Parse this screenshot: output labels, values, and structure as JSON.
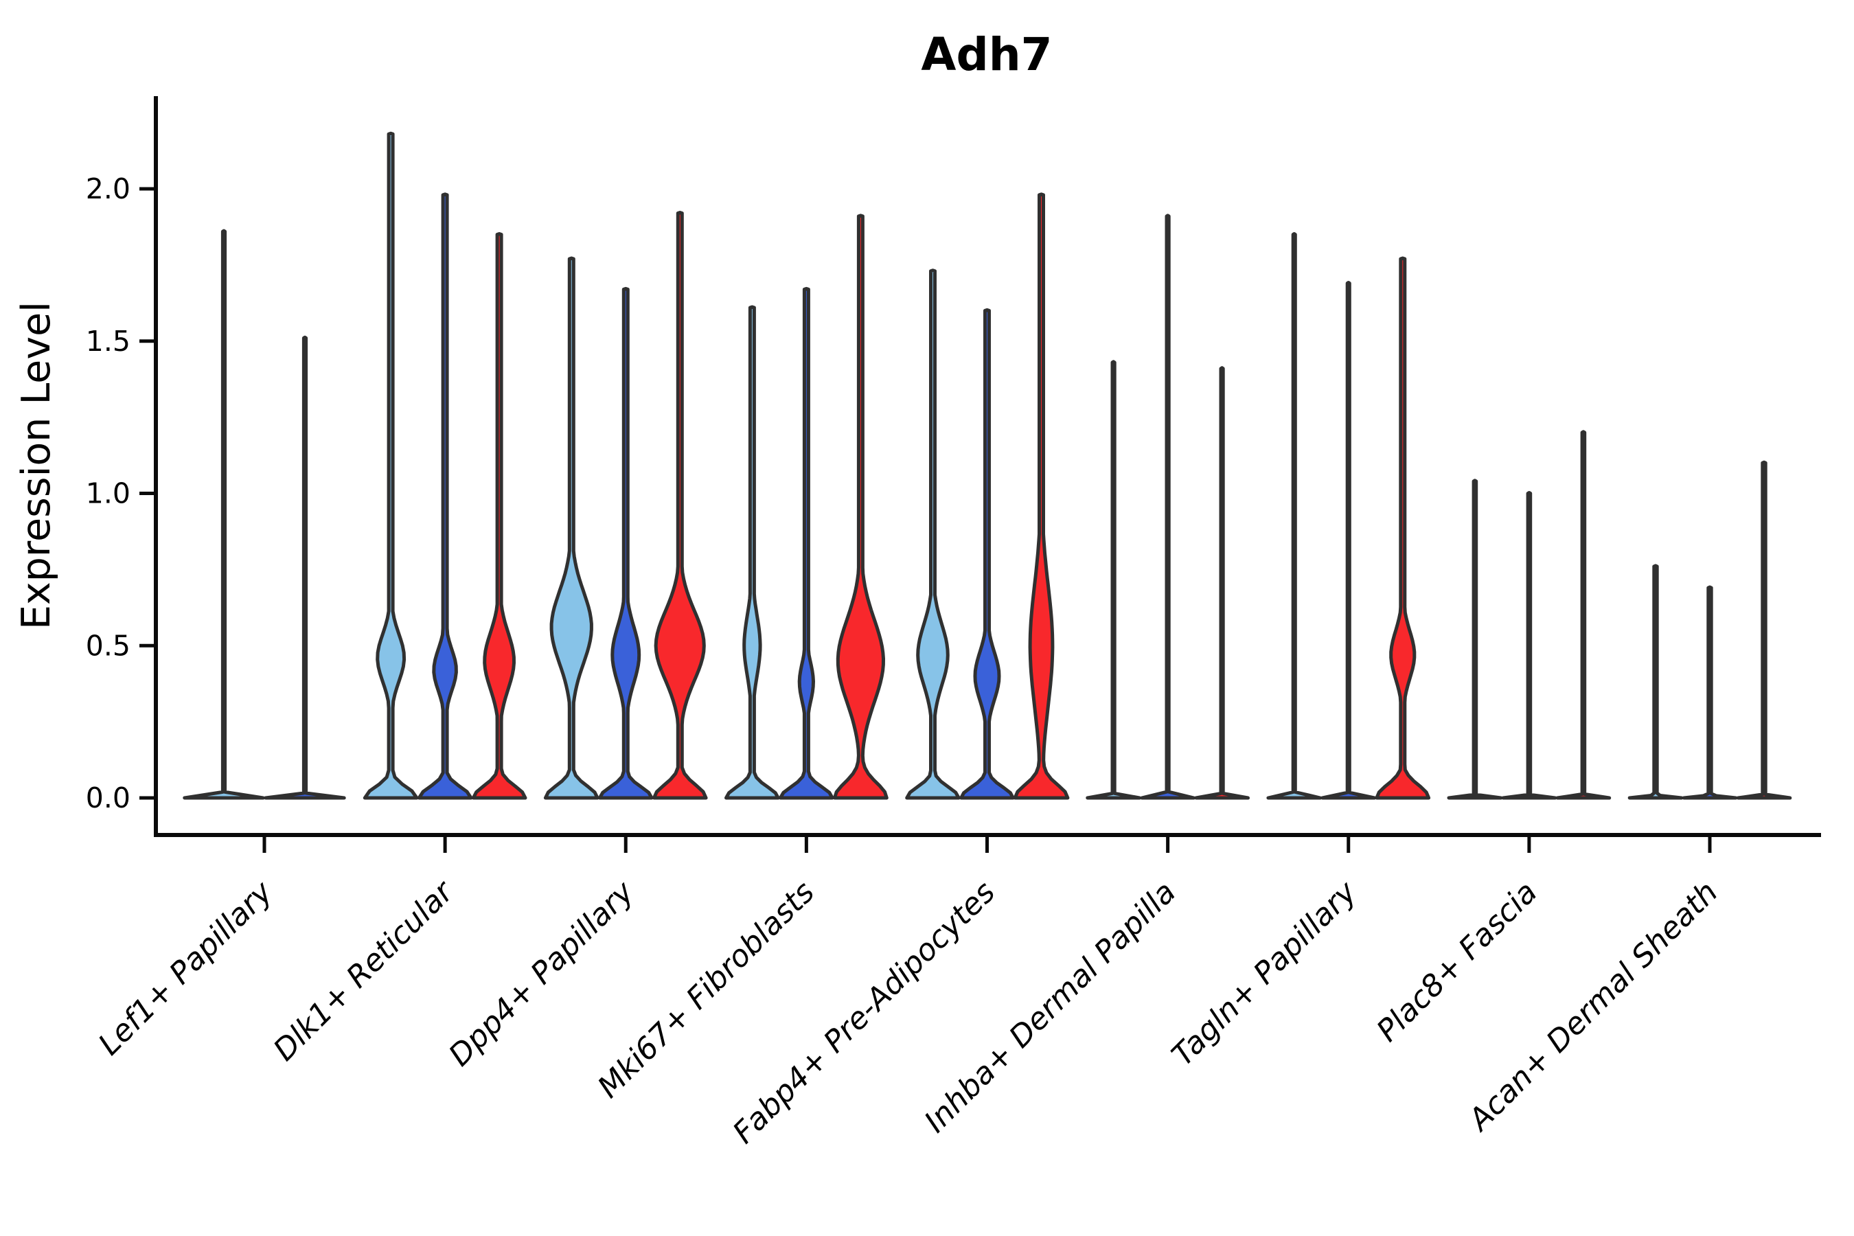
{
  "chart_data": {
    "type": "violin",
    "title": "Adh7",
    "xlabel": "",
    "ylabel": "Expression Level",
    "ylim": [
      0,
      2.3
    ],
    "yticks": [
      0.0,
      0.5,
      1.0,
      1.5,
      2.0
    ],
    "x_tick_rotation": 45,
    "grid": false,
    "legend": "none",
    "split_colors": [
      "#87C3E8",
      "#3A61D9",
      "#F8282C"
    ],
    "outline_color": "#303030",
    "spine_color": "#0a0a0a",
    "categories": [
      "Lef1+ Papillary",
      "Dlk1+ Reticular",
      "Dpp4+ Papillary",
      "Mki67+ Fibroblasts",
      "Fabp4+ Pre-Adipocytes",
      "Inhba+ Dermal Papilla",
      "Tagln+ Papillary",
      "Plac8+ Fascia",
      "Acan+ Dermal Sheath"
    ],
    "groups": [
      {
        "category": "Lef1+ Papillary",
        "violins": [
          {
            "split": 0,
            "max": 1.86,
            "bulges": [],
            "base_s": 0.006,
            "base_a": 0.97,
            "spike_hw": 1.6,
            "wide": true
          },
          {
            "split": 1,
            "max": 1.51,
            "bulges": [],
            "base_s": 0.006,
            "base_a": 0.97,
            "spike_hw": 1.6,
            "wide": true
          }
        ]
      },
      {
        "category": "Dlk1+ Reticular",
        "violins": [
          {
            "split": 0,
            "max": 2.18,
            "bulges": [
              {
                "c": 0.46,
                "s": 0.11,
                "a": 0.5
              }
            ],
            "base_s": 0.05,
            "base_a": 0.97,
            "spike_hw": 3
          },
          {
            "split": 1,
            "max": 1.98,
            "bulges": [
              {
                "c": 0.42,
                "s": 0.095,
                "a": 0.42
              }
            ],
            "base_s": 0.05,
            "base_a": 0.97,
            "spike_hw": 3
          },
          {
            "split": 2,
            "max": 1.85,
            "bulges": [
              {
                "c": 0.45,
                "s": 0.13,
                "a": 0.55
              }
            ],
            "base_s": 0.055,
            "base_a": 0.97,
            "spike_hw": 3
          }
        ]
      },
      {
        "category": "Dpp4+ Papillary",
        "violins": [
          {
            "split": 0,
            "max": 1.77,
            "bulges": [
              {
                "c": 0.56,
                "s": 0.165,
                "a": 0.75
              }
            ],
            "base_s": 0.055,
            "base_a": 0.97,
            "spike_hw": 3
          },
          {
            "split": 1,
            "max": 1.67,
            "bulges": [
              {
                "c": 0.47,
                "s": 0.13,
                "a": 0.5
              }
            ],
            "base_s": 0.05,
            "base_a": 0.97,
            "spike_hw": 3
          },
          {
            "split": 2,
            "max": 1.92,
            "bulges": [
              {
                "c": 0.5,
                "s": 0.16,
                "a": 0.9
              }
            ],
            "base_s": 0.06,
            "base_a": 0.97,
            "spike_hw": 3
          }
        ]
      },
      {
        "category": "Mki67+ Fibroblasts",
        "violins": [
          {
            "split": 0,
            "max": 1.61,
            "bulges": [
              {
                "c": 0.5,
                "s": 0.14,
                "a": 0.3
              }
            ],
            "base_s": 0.05,
            "base_a": 0.97,
            "spike_hw": 3
          },
          {
            "split": 1,
            "max": 1.67,
            "bulges": [
              {
                "c": 0.38,
                "s": 0.09,
                "a": 0.26
              }
            ],
            "base_s": 0.05,
            "base_a": 0.97,
            "spike_hw": 3
          },
          {
            "split": 2,
            "max": 1.91,
            "bulges": [
              {
                "c": 0.45,
                "s": 0.19,
                "a": 0.85
              }
            ],
            "base_s": 0.07,
            "base_a": 0.97,
            "spike_hw": 3
          }
        ]
      },
      {
        "category": "Fabp4+ Pre-Adipocytes",
        "violins": [
          {
            "split": 0,
            "max": 1.73,
            "bulges": [
              {
                "c": 0.47,
                "s": 0.14,
                "a": 0.56
              }
            ],
            "base_s": 0.05,
            "base_a": 0.97,
            "spike_hw": 3
          },
          {
            "split": 1,
            "max": 1.6,
            "bulges": [
              {
                "c": 0.4,
                "s": 0.11,
                "a": 0.45
              }
            ],
            "base_s": 0.05,
            "base_a": 0.97,
            "spike_hw": 3
          },
          {
            "split": 2,
            "max": 1.98,
            "bulges": [
              {
                "c": 0.5,
                "s": 0.28,
                "a": 0.42
              }
            ],
            "base_s": 0.06,
            "base_a": 0.97,
            "spike_hw": 3
          }
        ]
      },
      {
        "category": "Inhba+ Dermal Papilla",
        "violins": [
          {
            "split": 0,
            "max": 1.43,
            "bulges": [],
            "base_s": 0.006,
            "base_a": 0.97,
            "spike_hw": 1.6
          },
          {
            "split": 1,
            "max": 1.91,
            "bulges": [],
            "base_s": 0.006,
            "base_a": 0.97,
            "spike_hw": 1.6
          },
          {
            "split": 2,
            "max": 1.41,
            "bulges": [],
            "base_s": 0.006,
            "base_a": 0.97,
            "spike_hw": 1.6
          }
        ]
      },
      {
        "category": "Tagln+ Papillary",
        "violins": [
          {
            "split": 0,
            "max": 1.85,
            "bulges": [],
            "base_s": 0.006,
            "base_a": 0.97,
            "spike_hw": 1.6
          },
          {
            "split": 1,
            "max": 1.69,
            "bulges": [],
            "base_s": 0.006,
            "base_a": 0.97,
            "spike_hw": 1.6
          },
          {
            "split": 2,
            "max": 1.77,
            "bulges": [
              {
                "c": 0.47,
                "s": 0.11,
                "a": 0.44
              }
            ],
            "base_s": 0.06,
            "base_a": 0.97,
            "spike_hw": 3
          }
        ]
      },
      {
        "category": "Plac8+ Fascia",
        "violins": [
          {
            "split": 0,
            "max": 1.04,
            "bulges": [],
            "base_s": 0.006,
            "base_a": 0.97,
            "spike_hw": 1.8
          },
          {
            "split": 1,
            "max": 1.0,
            "bulges": [],
            "base_s": 0.006,
            "base_a": 0.97,
            "spike_hw": 1.8
          },
          {
            "split": 2,
            "max": 1.2,
            "bulges": [],
            "base_s": 0.006,
            "base_a": 0.97,
            "spike_hw": 1.8
          }
        ]
      },
      {
        "category": "Acan+ Dermal Sheath",
        "violins": [
          {
            "split": 0,
            "max": 0.76,
            "bulges": [],
            "base_s": 0.006,
            "base_a": 0.97,
            "spike_hw": 2.2
          },
          {
            "split": 1,
            "max": 0.69,
            "bulges": [],
            "base_s": 0.006,
            "base_a": 0.97,
            "spike_hw": 2.2
          },
          {
            "split": 2,
            "max": 1.1,
            "bulges": [],
            "base_s": 0.006,
            "base_a": 0.97,
            "spike_hw": 2.2
          }
        ]
      }
    ]
  }
}
